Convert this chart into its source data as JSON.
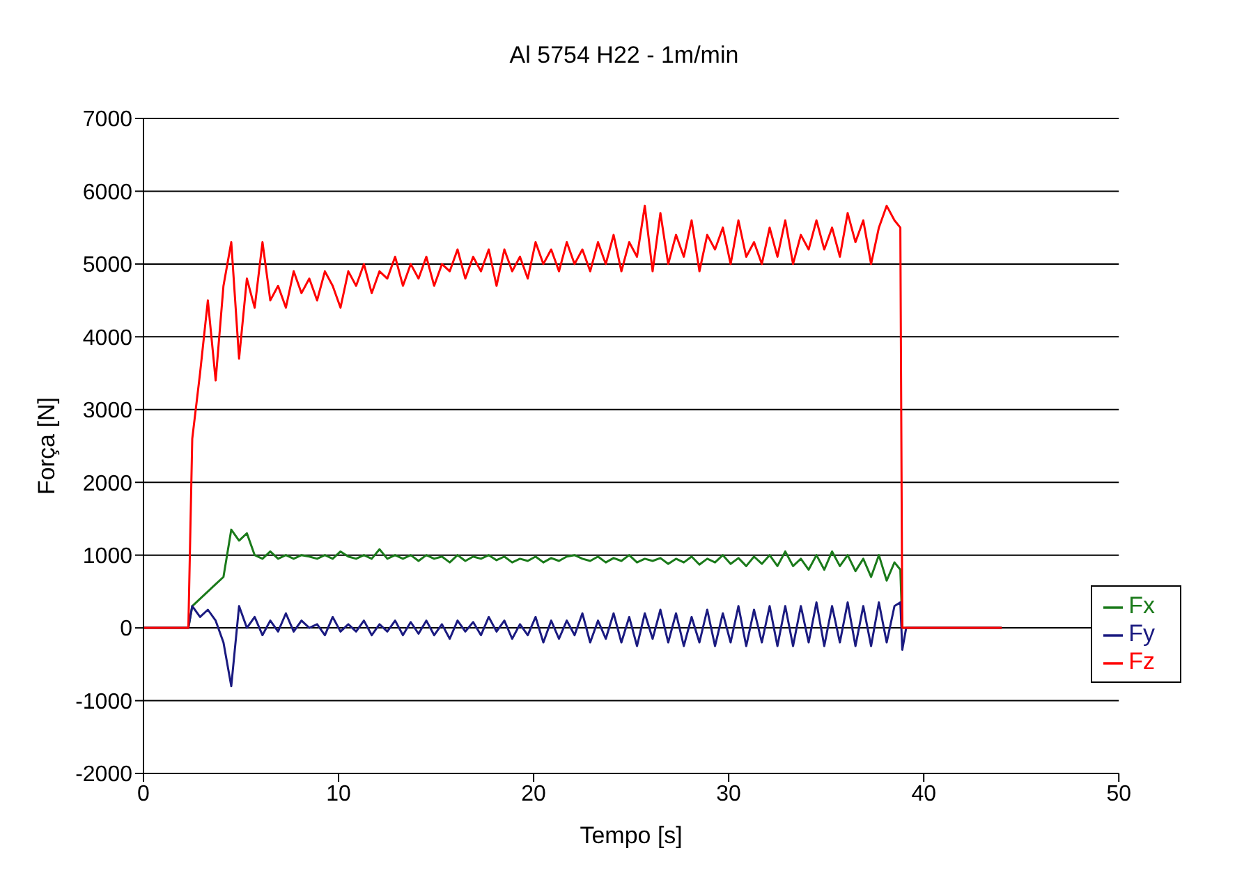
{
  "chart_data": {
    "type": "line",
    "title": "Al 5754 H22 - 1m/min",
    "xlabel": "Tempo [s]",
    "ylabel": "Força [N]",
    "x": [
      0,
      2.3,
      2.5,
      2.9,
      3.3,
      3.7,
      4.1,
      4.5,
      4.9,
      5.3,
      5.7,
      6.1,
      6.5,
      6.9,
      7.3,
      7.7,
      8.1,
      8.5,
      8.9,
      9.3,
      9.7,
      10.1,
      10.5,
      10.9,
      11.3,
      11.7,
      12.1,
      12.5,
      12.9,
      13.3,
      13.7,
      14.1,
      14.5,
      14.9,
      15.3,
      15.7,
      16.1,
      16.5,
      16.9,
      17.3,
      17.7,
      18.1,
      18.5,
      18.9,
      19.3,
      19.7,
      20.1,
      20.5,
      20.9,
      21.3,
      21.7,
      22.1,
      22.5,
      22.9,
      23.3,
      23.7,
      24.1,
      24.5,
      24.9,
      25.3,
      25.7,
      26.1,
      26.5,
      26.9,
      27.3,
      27.7,
      28.1,
      28.5,
      28.9,
      29.3,
      29.7,
      30.1,
      30.5,
      30.9,
      31.3,
      31.7,
      32.1,
      32.5,
      32.9,
      33.3,
      33.7,
      34.1,
      34.5,
      34.9,
      35.3,
      35.7,
      36.1,
      36.5,
      36.9,
      37.3,
      37.7,
      38.1,
      38.5,
      38.8,
      38.9,
      39.1,
      44
    ],
    "series": [
      {
        "name": "Fx",
        "color": "#1a7a1a",
        "values": [
          0,
          0,
          300,
          400,
          500,
          600,
          700,
          1350,
          1200,
          1300,
          1000,
          950,
          1050,
          950,
          1000,
          950,
          1000,
          980,
          950,
          1000,
          950,
          1050,
          980,
          950,
          1000,
          950,
          1080,
          950,
          1000,
          950,
          1000,
          920,
          1000,
          950,
          980,
          900,
          1000,
          920,
          980,
          950,
          1000,
          930,
          980,
          900,
          950,
          920,
          980,
          900,
          960,
          920,
          980,
          1000,
          950,
          920,
          980,
          900,
          960,
          920,
          1000,
          900,
          950,
          920,
          960,
          880,
          950,
          900,
          980,
          870,
          950,
          900,
          1000,
          880,
          960,
          850,
          980,
          880,
          1000,
          850,
          1050,
          850,
          950,
          800,
          1000,
          800,
          1050,
          850,
          1000,
          780,
          950,
          700,
          1000,
          650,
          900,
          800,
          0,
          0,
          0
        ]
      },
      {
        "name": "Fy",
        "color": "#1a1a80",
        "values": [
          0,
          0,
          300,
          150,
          250,
          100,
          -200,
          -800,
          300,
          0,
          150,
          -100,
          100,
          -50,
          200,
          -50,
          100,
          0,
          50,
          -100,
          150,
          -50,
          50,
          -50,
          100,
          -100,
          50,
          -50,
          100,
          -100,
          80,
          -80,
          100,
          -100,
          50,
          -150,
          100,
          -50,
          80,
          -100,
          150,
          -50,
          100,
          -150,
          50,
          -100,
          150,
          -200,
          100,
          -150,
          100,
          -100,
          200,
          -200,
          100,
          -150,
          200,
          -200,
          150,
          -250,
          200,
          -150,
          250,
          -200,
          200,
          -250,
          150,
          -200,
          250,
          -250,
          200,
          -200,
          300,
          -250,
          250,
          -200,
          300,
          -250,
          300,
          -250,
          300,
          -200,
          350,
          -250,
          300,
          -200,
          350,
          -250,
          300,
          -250,
          350,
          -200,
          300,
          350,
          -300,
          0,
          0
        ]
      },
      {
        "name": "Fz",
        "color": "#ff0000",
        "values": [
          0,
          0,
          2600,
          3500,
          4500,
          3400,
          4700,
          5300,
          3700,
          4800,
          4400,
          5300,
          4500,
          4700,
          4400,
          4900,
          4600,
          4800,
          4500,
          4900,
          4700,
          4400,
          4900,
          4700,
          5000,
          4600,
          4900,
          4800,
          5100,
          4700,
          5000,
          4800,
          5100,
          4700,
          5000,
          4900,
          5200,
          4800,
          5100,
          4900,
          5200,
          4700,
          5200,
          4900,
          5100,
          4800,
          5300,
          5000,
          5200,
          4900,
          5300,
          5000,
          5200,
          4900,
          5300,
          5000,
          5400,
          4900,
          5300,
          5100,
          5800,
          4900,
          5700,
          5000,
          5400,
          5100,
          5600,
          4900,
          5400,
          5200,
          5500,
          5000,
          5600,
          5100,
          5300,
          5000,
          5500,
          5100,
          5600,
          5000,
          5400,
          5200,
          5600,
          5200,
          5500,
          5100,
          5700,
          5300,
          5600,
          5000,
          5500,
          5800,
          5600,
          5500,
          0,
          0,
          0
        ]
      }
    ],
    "xlim": [
      0,
      50
    ],
    "xticks": [
      0,
      10,
      20,
      30,
      40,
      50
    ],
    "ylim": [
      -2000,
      7000
    ],
    "yticks": [
      -2000,
      -1000,
      0,
      1000,
      2000,
      3000,
      4000,
      5000,
      6000,
      7000
    ],
    "grid": "y",
    "legend": "right",
    "marker": "none",
    "line_style": "solid"
  }
}
